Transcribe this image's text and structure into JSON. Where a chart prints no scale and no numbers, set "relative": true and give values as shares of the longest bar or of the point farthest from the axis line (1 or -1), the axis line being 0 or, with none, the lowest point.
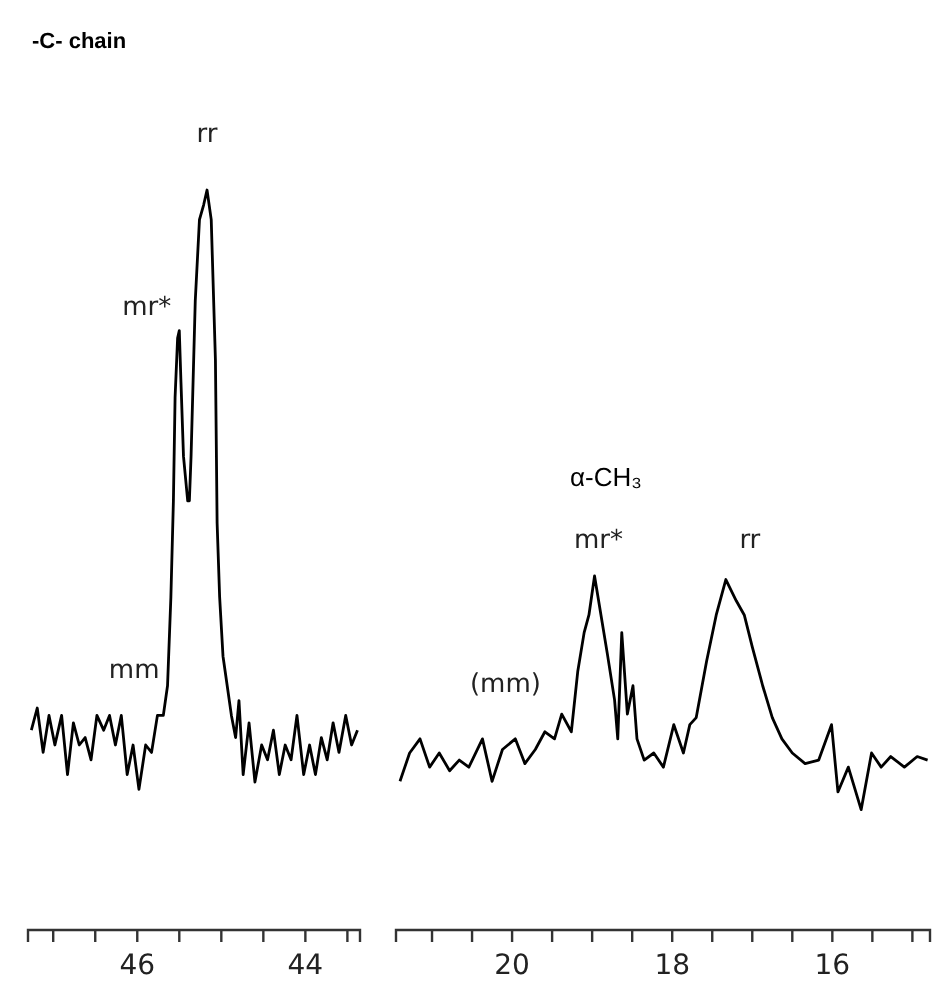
{
  "chart_data": [
    {
      "type": "line",
      "title": "-C- chain",
      "relative": true,
      "color": "#000000",
      "xlim": [
        47.3,
        43.35
      ],
      "xticks": [
        {
          "value": 47,
          "label": null
        },
        {
          "value": 46.5,
          "label": null
        },
        46,
        {
          "value": 45.5,
          "label": null
        },
        {
          "value": 45,
          "label": null
        },
        {
          "value": 44.5,
          "label": null
        },
        44,
        {
          "value": 43.5,
          "label": null
        }
      ],
      "x": [
        47.26,
        47.19,
        47.12,
        47.05,
        46.98,
        46.9,
        46.83,
        46.76,
        46.69,
        46.62,
        46.55,
        46.48,
        46.4,
        46.33,
        46.26,
        46.19,
        46.12,
        46.05,
        45.98,
        45.9,
        45.83,
        45.76,
        45.69,
        45.64,
        45.6,
        45.57,
        45.55,
        45.52,
        45.5,
        45.48,
        45.45,
        45.4,
        45.38,
        45.36,
        45.31,
        45.26,
        45.21,
        45.17,
        45.12,
        45.07,
        45.05,
        45.02,
        44.98,
        44.93,
        44.88,
        44.83,
        44.79,
        44.74,
        44.67,
        44.6,
        44.52,
        44.45,
        44.38,
        44.31,
        44.24,
        44.17,
        44.1,
        44.02,
        43.95,
        43.88,
        43.81,
        43.74,
        43.67,
        43.6,
        43.52,
        43.45,
        43.38
      ],
      "values": [
        0.27,
        0.3,
        0.24,
        0.29,
        0.25,
        0.29,
        0.21,
        0.28,
        0.25,
        0.26,
        0.23,
        0.29,
        0.27,
        0.29,
        0.25,
        0.29,
        0.21,
        0.25,
        0.19,
        0.25,
        0.24,
        0.29,
        0.29,
        0.33,
        0.45,
        0.58,
        0.72,
        0.8,
        0.81,
        0.74,
        0.64,
        0.58,
        0.58,
        0.64,
        0.85,
        0.96,
        0.98,
        1,
        0.96,
        0.77,
        0.55,
        0.45,
        0.37,
        0.33,
        0.29,
        0.26,
        0.31,
        0.21,
        0.28,
        0.2,
        0.25,
        0.23,
        0.27,
        0.21,
        0.25,
        0.23,
        0.29,
        0.21,
        0.25,
        0.21,
        0.26,
        0.23,
        0.28,
        0.24,
        0.29,
        0.25,
        0.27
      ],
      "annotations": [
        {
          "text": "rr",
          "x": 45.17,
          "y": 1
        },
        {
          "text": "mr*",
          "x": 45.5,
          "y": 0.81
        },
        {
          "text": "mm",
          "x": 45.64,
          "y": 0.33
        }
      ]
    },
    {
      "type": "line",
      "title": "α-CH₃",
      "relative": true,
      "color": "#000000",
      "xlim": [
        21.45,
        14.78
      ],
      "xticks": [
        {
          "value": 21,
          "label": null
        },
        {
          "value": 20.5,
          "label": null
        },
        20,
        {
          "value": 19.5,
          "label": null
        },
        {
          "value": 19,
          "label": null
        },
        {
          "value": 18.5,
          "label": null
        },
        18,
        {
          "value": 17.5,
          "label": null
        },
        {
          "value": 17,
          "label": null
        },
        {
          "value": 16.5,
          "label": null
        },
        16,
        {
          "value": 15.5,
          "label": null
        },
        {
          "value": 15,
          "label": null
        }
      ],
      "x": [
        21.4,
        21.28,
        21.15,
        21.03,
        20.91,
        20.78,
        20.66,
        20.54,
        20.37,
        20.25,
        20.12,
        19.96,
        19.84,
        19.71,
        19.59,
        19.47,
        19.38,
        19.26,
        19.18,
        19.1,
        19.04,
        18.97,
        18.89,
        18.81,
        18.72,
        18.68,
        18.63,
        18.56,
        18.49,
        18.44,
        18.35,
        18.23,
        18.11,
        17.98,
        17.86,
        17.78,
        17.7,
        17.57,
        17.45,
        17.33,
        17.2,
        17.1,
        17,
        16.87,
        16.75,
        16.63,
        16.5,
        16.34,
        16.17,
        16.01,
        15.93,
        15.8,
        15.64,
        15.51,
        15.39,
        15.27,
        15.1,
        14.94,
        14.81
      ],
      "values": [
        0.42,
        0.5,
        0.54,
        0.46,
        0.5,
        0.45,
        0.48,
        0.46,
        0.54,
        0.42,
        0.51,
        0.54,
        0.47,
        0.51,
        0.56,
        0.54,
        0.61,
        0.56,
        0.73,
        0.84,
        0.89,
        1,
        0.89,
        0.78,
        0.65,
        0.54,
        0.84,
        0.61,
        0.69,
        0.54,
        0.48,
        0.5,
        0.46,
        0.58,
        0.5,
        0.58,
        0.6,
        0.76,
        0.89,
        0.99,
        0.93,
        0.89,
        0.8,
        0.69,
        0.6,
        0.54,
        0.5,
        0.47,
        0.48,
        0.58,
        0.39,
        0.46,
        0.34,
        0.5,
        0.46,
        0.49,
        0.46,
        0.49,
        0.48
      ],
      "annotations": [
        {
          "text": "mr*",
          "x": 18.97,
          "y": 1
        },
        {
          "text": "rr",
          "x": 17.33,
          "y": 0.99
        },
        {
          "text": "(mm)",
          "x": 19.59,
          "y": 0.56
        }
      ]
    }
  ]
}
